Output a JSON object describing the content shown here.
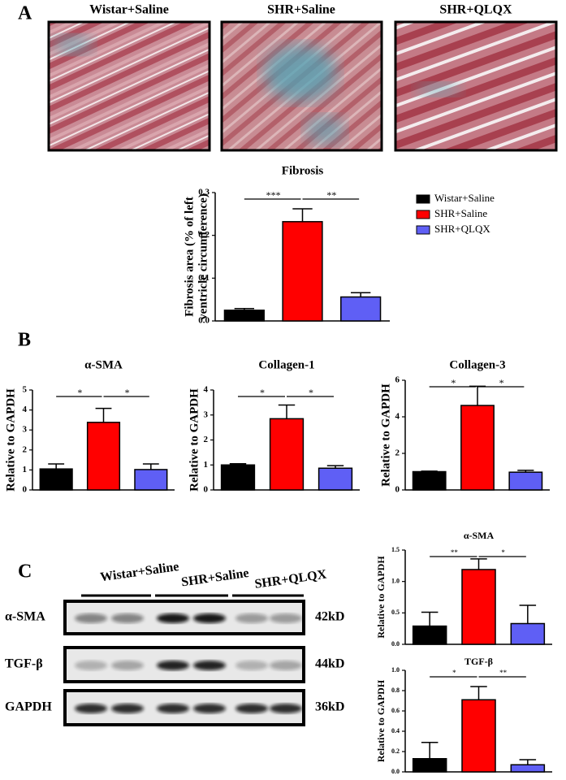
{
  "panel_labels": [
    "A",
    "B",
    "C"
  ],
  "histology": {
    "titles": [
      "Wistar+Saline",
      "SHR+Saline",
      "SHR+QLQX"
    ]
  },
  "blot": {
    "groups": [
      "Wistar+Saline",
      "SHR+Saline",
      "SHR+QLQX"
    ],
    "rows": [
      {
        "name": "α-SMA",
        "size": "42kD"
      },
      {
        "name": "TGF-β",
        "size": "44kD"
      },
      {
        "name": "GAPDH",
        "size": "36kD"
      }
    ]
  },
  "chart_data": [
    {
      "type": "bar",
      "title": "Fibrosis",
      "ylabel": [
        "Fibrosis area (% of left",
        "ventricle circumference)"
      ],
      "categories": [
        "Wistar+Saline",
        "SHR+Saline",
        "SHR+QLQX"
      ],
      "legend": "right",
      "values": [
        0.025,
        0.232,
        0.056
      ],
      "errors": [
        0.004,
        0.03,
        0.01
      ],
      "colors": [
        "#000000",
        "#ff0000",
        "#5f5ff5"
      ],
      "ylim": [
        0,
        0.3
      ],
      "yticks": [
        {
          "value": 0,
          "label": "0.0"
        },
        0.1,
        0.2,
        0.3
      ],
      "annotations": [
        "***",
        "**"
      ]
    },
    {
      "type": "bar",
      "title": "α-SMA",
      "ylabel": [
        "Relative to GAPDH"
      ],
      "values": [
        1.05,
        3.38,
        1.02
      ],
      "errors": [
        0.25,
        0.7,
        0.28
      ],
      "colors": [
        "#000000",
        "#ff0000",
        "#5f5ff5"
      ],
      "ylim": [
        0,
        5
      ],
      "yticks": [
        0,
        1,
        2,
        3,
        4,
        5
      ],
      "annotations": [
        "*",
        "*"
      ]
    },
    {
      "type": "bar",
      "title": "Collagen-1",
      "ylabel": [
        "Relative to GAPDH"
      ],
      "values": [
        1.0,
        2.85,
        0.87
      ],
      "errors": [
        0.05,
        0.55,
        0.1
      ],
      "colors": [
        "#000000",
        "#ff0000",
        "#5f5ff5"
      ],
      "ylim": [
        0,
        4
      ],
      "yticks": [
        0,
        1,
        2,
        3,
        4
      ],
      "annotations": [
        "*",
        "*"
      ]
    },
    {
      "type": "bar",
      "title": "Collagen-3",
      "ylabel": [
        "Relative to GAPDH"
      ],
      "values": [
        1.0,
        4.62,
        0.97
      ],
      "errors": [
        0.03,
        1.05,
        0.1
      ],
      "colors": [
        "#000000",
        "#ff0000",
        "#5f5ff5"
      ],
      "ylim": [
        0,
        6
      ],
      "yticks": [
        0,
        2,
        4,
        6
      ],
      "annotations": [
        "*",
        "*"
      ]
    },
    {
      "type": "bar",
      "title": "α-SMA",
      "ylabel": [
        "Relative to GAPDH"
      ],
      "values": [
        0.29,
        1.19,
        0.33
      ],
      "errors": [
        0.22,
        0.17,
        0.29
      ],
      "colors": [
        "#000000",
        "#ff0000",
        "#5f5ff5"
      ],
      "ylim": [
        0,
        1.5
      ],
      "yticks": [
        {
          "value": 0,
          "label": "0.0"
        },
        0.5,
        {
          "value": 1,
          "label": "1.0"
        },
        1.5
      ],
      "annotations": [
        "**",
        "*"
      ]
    },
    {
      "type": "bar",
      "title": "TGF-β",
      "ylabel": [
        "Relative to GAPDH"
      ],
      "values": [
        0.13,
        0.71,
        0.07
      ],
      "errors": [
        0.16,
        0.13,
        0.05
      ],
      "colors": [
        "#000000",
        "#ff0000",
        "#5f5ff5"
      ],
      "ylim": [
        0,
        1
      ],
      "yticks": [
        {
          "value": 0,
          "label": "0.0"
        },
        0.2,
        0.4,
        0.6,
        0.8,
        {
          "value": 1,
          "label": "1.0"
        }
      ],
      "annotations": [
        "*",
        "**"
      ]
    }
  ]
}
